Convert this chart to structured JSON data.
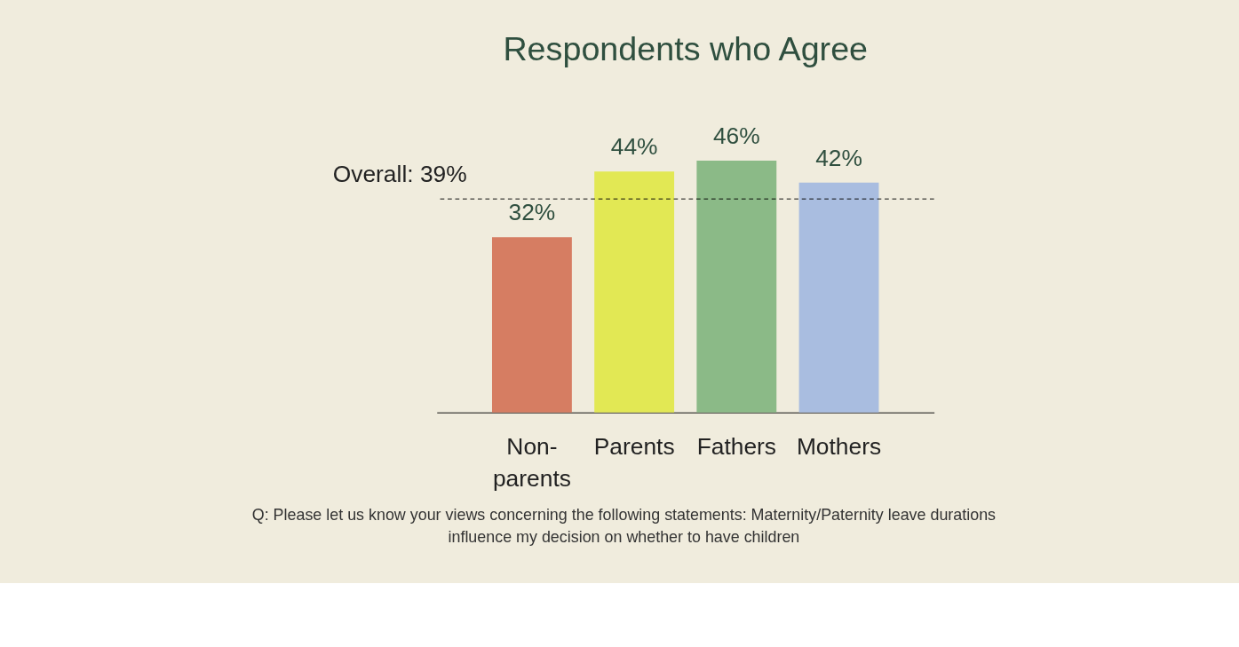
{
  "chart_data": {
    "type": "bar",
    "title": "Respondents who Agree",
    "categories": [
      "Non-parents",
      "Parents",
      "Fathers",
      "Mothers"
    ],
    "values": [
      32,
      44,
      46,
      42
    ],
    "colors": [
      "#d67d62",
      "#e2e854",
      "#8bba87",
      "#a9bde0"
    ],
    "value_labels": [
      "32%",
      "44%",
      "46%",
      "42%"
    ],
    "ref_lines": [
      {
        "axis": "y",
        "value": 39,
        "label": "Overall: 39%",
        "line_style": "dashed",
        "color": "#000000"
      }
    ],
    "annotations": [
      "Q: Please let us know your views concerning the following statements: Maternity/Paternity leave durations influence my decision on whether to have children"
    ],
    "tick_labels": "x",
    "grid": false
  }
}
